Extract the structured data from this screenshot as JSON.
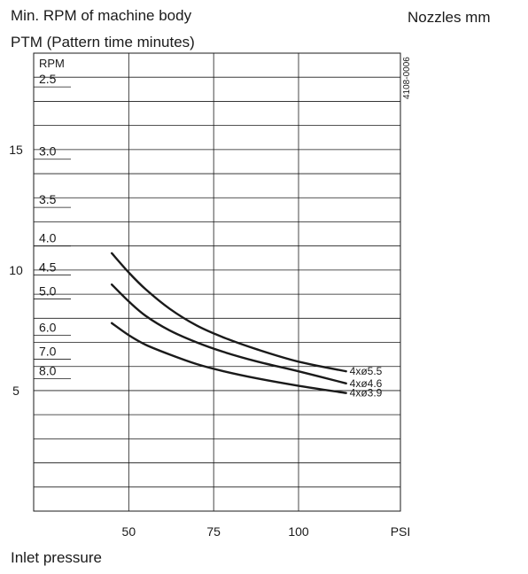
{
  "header": {
    "title_line1": "Min. RPM of machine body",
    "title_line2": "PTM (Pattern time minutes)",
    "right_label": "Nozzles mm",
    "figure_code": "4108-0006"
  },
  "footer": {
    "xaxis_caption": "Inlet pressure"
  },
  "chart_data": {
    "type": "line",
    "title": "Min. RPM of machine body",
    "subtitle": "PTM (Pattern time minutes)",
    "xlabel": "Inlet pressure",
    "x_unit": "PSI",
    "ylabel": "RPM",
    "secondary_label": "PTM (Pattern time minutes)",
    "legend_title": "Nozzles mm",
    "xlim": [
      22,
      130
    ],
    "ylim": [
      0,
      19
    ],
    "x_ticks": [
      50,
      75,
      100
    ],
    "x_tick_labels": [
      "50",
      "75",
      "100"
    ],
    "rpm_ticks": [
      5,
      10,
      15
    ],
    "rpm_tick_labels": [
      "5",
      "10",
      "15"
    ],
    "ptm_ticks": [
      {
        "label": "2.5",
        "rpm": 17.6
      },
      {
        "label": "3.0",
        "rpm": 14.6
      },
      {
        "label": "3.5",
        "rpm": 12.6
      },
      {
        "label": "4.0",
        "rpm": 11.0
      },
      {
        "label": "4.5",
        "rpm": 9.8
      },
      {
        "label": "5.0",
        "rpm": 8.8
      },
      {
        "label": "6.0",
        "rpm": 7.3
      },
      {
        "label": "7.0",
        "rpm": 6.3
      },
      {
        "label": "8.0",
        "rpm": 5.5
      }
    ],
    "grid": true,
    "series": [
      {
        "name": "4xø5.5",
        "x": [
          45,
          50,
          55,
          62,
          70,
          78,
          88,
          100,
          114
        ],
        "y": [
          10.7,
          9.9,
          9.2,
          8.4,
          7.7,
          7.2,
          6.7,
          6.2,
          5.8
        ]
      },
      {
        "name": "4xø4.6",
        "x": [
          45,
          50,
          55,
          62,
          70,
          78,
          88,
          100,
          114
        ],
        "y": [
          9.4,
          8.7,
          8.1,
          7.5,
          7.0,
          6.6,
          6.2,
          5.8,
          5.3
        ]
      },
      {
        "name": "4xø3.9",
        "x": [
          45,
          50,
          55,
          62,
          70,
          78,
          88,
          100,
          114
        ],
        "y": [
          7.8,
          7.3,
          6.9,
          6.5,
          6.1,
          5.8,
          5.5,
          5.2,
          4.9
        ]
      }
    ]
  }
}
